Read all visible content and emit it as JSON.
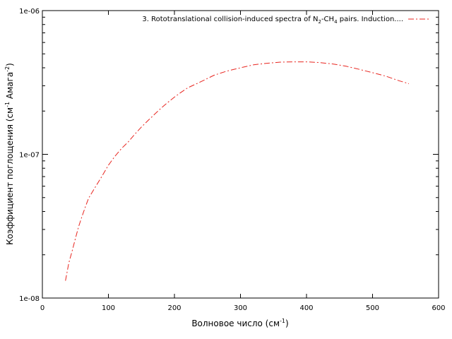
{
  "chart_data": {
    "type": "line",
    "title": "",
    "xlabel": {
      "main": "Волновое число (см",
      "sup": "-1",
      "tail": ")"
    },
    "ylabel": {
      "main": "Коэффициент поглощения (см",
      "sup1": "-1",
      "mid": " Амага",
      "sup2": "-2",
      "tail": ")"
    },
    "xlim": [
      0,
      600
    ],
    "ylim": [
      1e-08,
      1e-06
    ],
    "yscale": "log",
    "grid": false,
    "x_ticks": [
      0,
      100,
      200,
      300,
      400,
      500,
      600
    ],
    "x_tick_labels": [
      "0",
      "100",
      "200",
      "300",
      "400",
      "500",
      "600"
    ],
    "y_major_ticks": [
      1e-08,
      1e-07,
      1e-06
    ],
    "y_tick_labels": [
      "1e-08",
      "1e-07",
      "1e-06"
    ],
    "legend_position": "top-right",
    "series": [
      {
        "legend": {
          "main": "3. Rototranslational collision-induced spectra of N",
          "sub1": "2",
          "mid": "-CH",
          "sub2": "4",
          "tail": " pairs. Induction...."
        },
        "color": "#e8251f",
        "line_style": "dash-dot",
        "x": [
          35,
          40,
          45,
          50,
          55,
          60,
          65,
          70,
          80,
          90,
          100,
          110,
          120,
          130,
          140,
          150,
          160,
          170,
          180,
          190,
          200,
          210,
          220,
          240,
          260,
          280,
          300,
          320,
          340,
          360,
          380,
          400,
          420,
          440,
          460,
          480,
          500,
          520,
          540,
          555
        ],
        "y": [
          1.32e-08,
          1.75e-08,
          2.12e-08,
          2.6e-08,
          3.15e-08,
          3.7e-08,
          4.3e-08,
          4.95e-08,
          5.9e-08,
          7e-08,
          8.4e-08,
          9.7e-08,
          1.1e-07,
          1.22e-07,
          1.38e-07,
          1.55e-07,
          1.72e-07,
          1.9e-07,
          2.1e-07,
          2.3e-07,
          2.5e-07,
          2.7e-07,
          2.9e-07,
          3.2e-07,
          3.55e-07,
          3.8e-07,
          4e-07,
          4.2e-07,
          4.3e-07,
          4.38e-07,
          4.4e-07,
          4.4e-07,
          4.35e-07,
          4.25e-07,
          4.1e-07,
          3.9e-07,
          3.7e-07,
          3.5e-07,
          3.25e-07,
          3.1e-07
        ]
      }
    ]
  }
}
